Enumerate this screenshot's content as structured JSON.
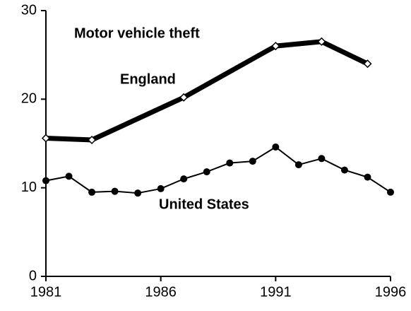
{
  "chart_data": {
    "type": "line",
    "title": "Motor vehicle theft",
    "series": [
      {
        "name": "England",
        "color": "#000000",
        "marker": "diamond",
        "line_width": 7,
        "x": [
          1981,
          1983,
          1987,
          1991,
          1993,
          1995
        ],
        "values": [
          15.6,
          15.4,
          20.2,
          26,
          26.5,
          24
        ]
      },
      {
        "name": "United States",
        "color": "#000000",
        "marker": "circle",
        "line_width": 2,
        "x": [
          1981,
          1982,
          1983,
          1984,
          1985,
          1986,
          1987,
          1988,
          1989,
          1990,
          1991,
          1992,
          1993,
          1994,
          1995,
          1996
        ],
        "values": [
          10.8,
          11.3,
          9.5,
          9.6,
          9.4,
          9.9,
          11,
          11.8,
          12.8,
          13,
          14.6,
          12.6,
          13.3,
          12,
          11.2,
          9.5
        ]
      }
    ],
    "xlim": [
      1981,
      1996
    ],
    "xticks": [
      1981,
      1986,
      1991,
      1996
    ],
    "ylim": [
      0,
      30
    ],
    "yticks": [
      0,
      10,
      20,
      30
    ],
    "grid": false
  }
}
